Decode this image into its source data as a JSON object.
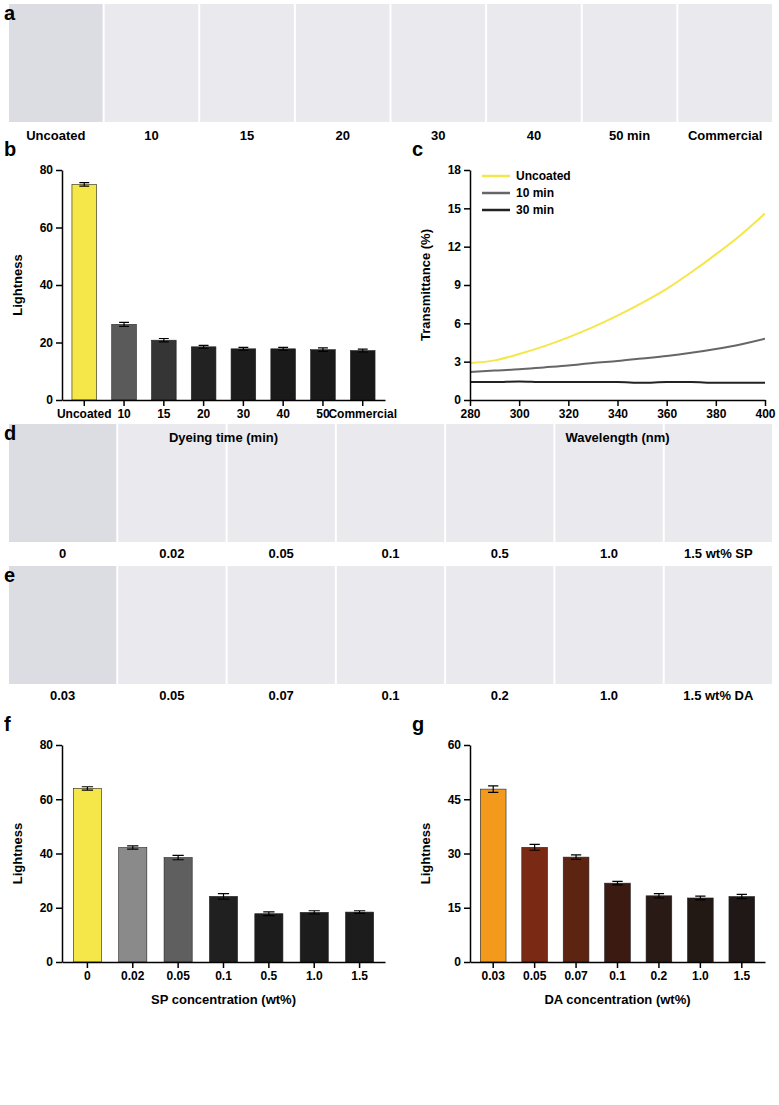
{
  "chart_data": [
    {
      "type": "bar",
      "title": "b",
      "xlabel": "Dyeing time (min)",
      "ylabel": "Lightness",
      "categories": [
        "Uncoated",
        "10",
        "15",
        "20",
        "30",
        "40",
        "50",
        "Commercial"
      ],
      "values": [
        75,
        26.3,
        20.8,
        18.5,
        17.8,
        17.8,
        17.5,
        17.2
      ],
      "errors": [
        0.6,
        0.7,
        0.6,
        0.5,
        0.5,
        0.5,
        0.6,
        0.5
      ],
      "colors": [
        "#f5e64a",
        "#5a5a5a",
        "#353535",
        "#222222",
        "#1c1c1c",
        "#1a1a1a",
        "#1a1a1a",
        "#181818"
      ],
      "ylim": [
        0,
        80
      ],
      "yticks": [
        0,
        20,
        40,
        60,
        80
      ]
    },
    {
      "type": "line",
      "title": "c",
      "xlabel": "Wavelength (nm)",
      "ylabel": "Transmittance (%)",
      "x": [
        280,
        290,
        300,
        310,
        320,
        330,
        340,
        350,
        360,
        370,
        380,
        390,
        400
      ],
      "series": [
        {
          "name": "Uncoated",
          "color": "#f5e64a",
          "values": [
            2.9,
            3.1,
            3.6,
            4.2,
            4.9,
            5.7,
            6.6,
            7.6,
            8.7,
            10.0,
            11.4,
            12.9,
            14.6
          ]
        },
        {
          "name": "10 min",
          "color": "#666666",
          "values": [
            2.2,
            2.3,
            2.4,
            2.55,
            2.7,
            2.9,
            3.05,
            3.25,
            3.45,
            3.7,
            4.0,
            4.35,
            4.8
          ]
        },
        {
          "name": "30 min",
          "color": "#222222",
          "values": [
            1.4,
            1.4,
            1.45,
            1.4,
            1.4,
            1.4,
            1.4,
            1.35,
            1.4,
            1.4,
            1.35,
            1.35,
            1.35
          ]
        }
      ],
      "xlim": [
        280,
        400
      ],
      "xticks": [
        280,
        300,
        320,
        340,
        360,
        380,
        400
      ],
      "ylim": [
        0,
        18
      ],
      "yticks": [
        0,
        3,
        6,
        9,
        12,
        15,
        18
      ],
      "legend": "upper left"
    },
    {
      "type": "bar",
      "title": "f",
      "xlabel": "SP concentration (wt%)",
      "ylabel": "Lightness",
      "categories": [
        "0",
        "0.02",
        "0.05",
        "0.1",
        "0.5",
        "1.0",
        "1.5"
      ],
      "values": [
        64,
        42.2,
        38.5,
        24.2,
        17.8,
        18.3,
        18.4
      ],
      "errors": [
        0.6,
        0.6,
        0.8,
        1.0,
        0.7,
        0.6,
        0.5
      ],
      "colors": [
        "#f5e64a",
        "#8a8a8a",
        "#5f5f5f",
        "#202020",
        "#1c1c1c",
        "#1c1c1c",
        "#1c1c1c"
      ],
      "ylim": [
        0,
        80
      ],
      "yticks": [
        0,
        20,
        40,
        60,
        80
      ]
    },
    {
      "type": "bar",
      "title": "g",
      "xlabel": "DA concentration (wt%)",
      "ylabel": "Lightness",
      "categories": [
        "0.03",
        "0.05",
        "0.07",
        "0.1",
        "0.2",
        "1.0",
        "1.5"
      ],
      "values": [
        47.8,
        31.7,
        29.0,
        21.8,
        18.3,
        17.7,
        18.1
      ],
      "errors": [
        0.9,
        0.8,
        0.6,
        0.5,
        0.6,
        0.5,
        0.6
      ],
      "colors": [
        "#f39a1d",
        "#7a2a14",
        "#5e2412",
        "#3b1a12",
        "#2a1a16",
        "#221814",
        "#201816"
      ],
      "ylim": [
        0,
        60
      ],
      "yticks": [
        0,
        15,
        30,
        45,
        60
      ]
    }
  ],
  "photo_panels": [
    {
      "panel": "a",
      "labels": [
        "Uncoated",
        "10",
        "15",
        "20",
        "30",
        "40",
        "50 min",
        "Commercial"
      ],
      "colors": [
        "#d9c85a",
        "#1d1d1d",
        "#1b1b1b",
        "#1a1a1a",
        "#191919",
        "#181818",
        "#181818",
        "#171717"
      ]
    },
    {
      "panel": "d",
      "labels": [
        "0",
        "0.02",
        "0.05",
        "0.1",
        "0.5",
        "1.0",
        "1.5 wt% SP"
      ],
      "colors": [
        "#c9b77a",
        "#8c7c52",
        "#7a6b45",
        "#2a261f",
        "#1c1a18",
        "#161616",
        "#141414"
      ]
    },
    {
      "panel": "e",
      "labels": [
        "0.03",
        "0.05",
        "0.07",
        "0.1",
        "0.2",
        "1.0",
        "1.5 wt% DA"
      ],
      "colors": [
        "#b08a3a",
        "#6e4a26",
        "#5e4024",
        "#2c2420",
        "#1e1c1c",
        "#181818",
        "#161616"
      ]
    }
  ]
}
